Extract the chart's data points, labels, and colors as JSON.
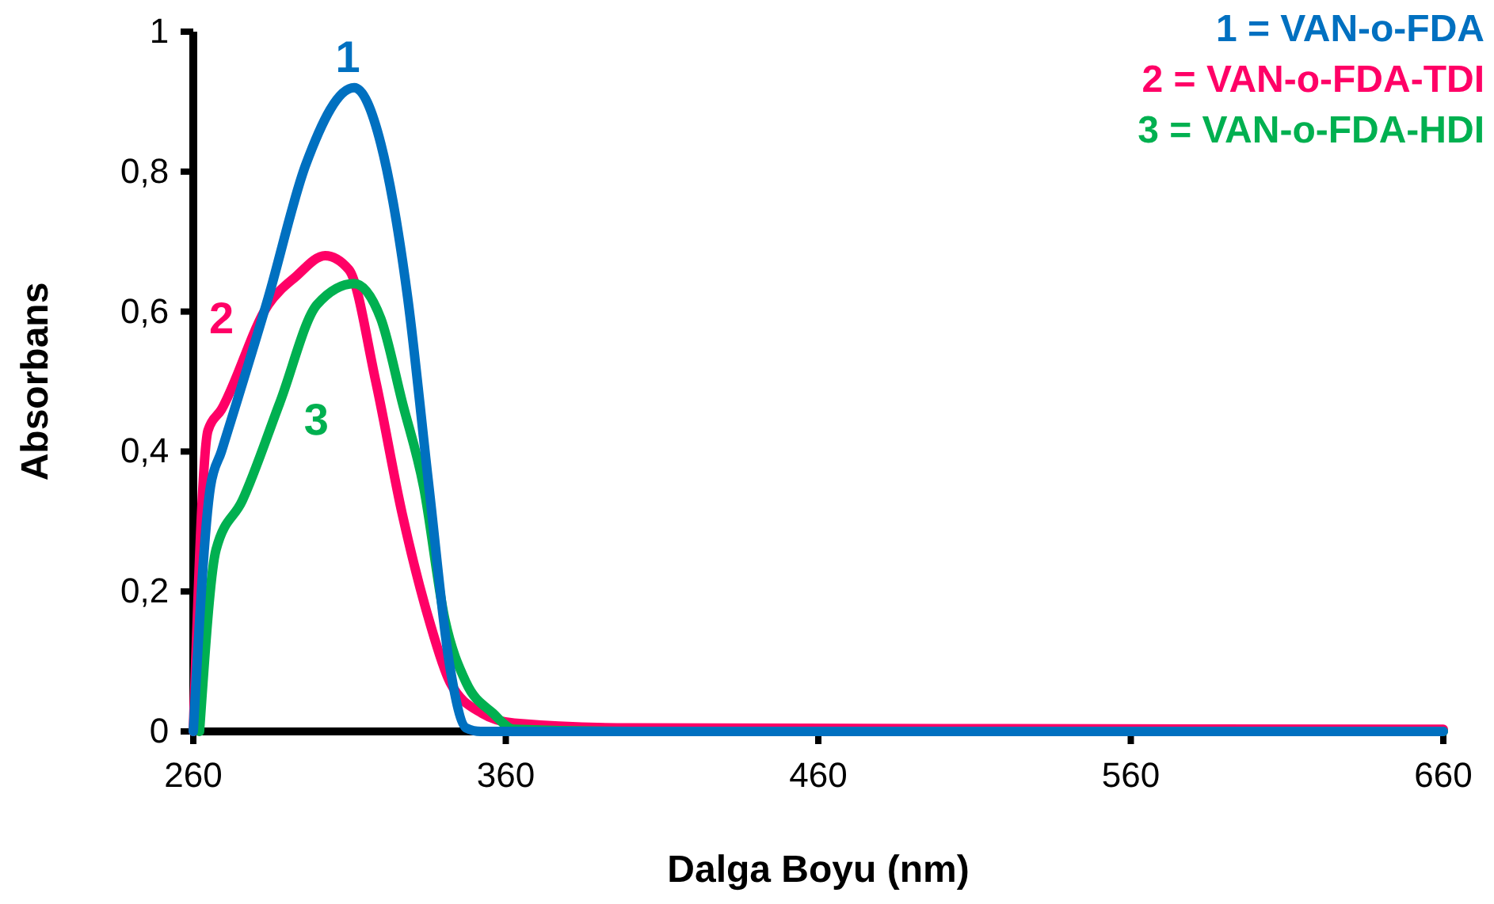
{
  "chart_data": {
    "type": "line",
    "xlabel": "Dalga Boyu (nm)",
    "ylabel": "Absorbans",
    "xlim": [
      260,
      660
    ],
    "xticks": [
      260,
      360,
      460,
      560,
      660
    ],
    "ylim": [
      0,
      1
    ],
    "yticks": [
      0,
      {
        "value": 0.2,
        "label": "0,2"
      },
      {
        "value": 0.4,
        "label": "0,4"
      },
      {
        "value": 0.6,
        "label": "0,6"
      },
      {
        "value": 0.8,
        "label": "0,8"
      },
      1
    ],
    "legend": "top right",
    "grid": false,
    "marker": "none",
    "line_style": "solid",
    "series": [
      {
        "name": "1 = VAN-o-FDA",
        "color": "#0070c0",
        "x": [
          260,
          265.5,
          269,
          284,
          296,
          311.5,
          320,
          328.6,
          335.4,
          342.2,
          347.3,
          352,
          400,
          500,
          660
        ],
        "values": [
          0,
          0.35,
          0.4,
          0.62,
          0.81,
          0.92,
          0.84,
          0.62,
          0.35,
          0.09,
          0.005,
          0,
          0,
          0,
          0
        ]
      },
      {
        "name": "2 = VAN-o-FDA-TDI",
        "color": "#ff0066",
        "x": [
          260,
          264.7,
          269,
          284,
          292.8,
          302.2,
          309.8,
          318.4,
          326.9,
          335.4,
          342.2,
          352.4,
          362.7,
          400,
          500,
          660
        ],
        "values": [
          0,
          0.43,
          0.46,
          0.61,
          0.65,
          0.68,
          0.66,
          0.5,
          0.31,
          0.16,
          0.07,
          0.026,
          0.012,
          0.005,
          0.004,
          0.003
        ]
      },
      {
        "name": "3 = VAN-o-FDA-HDI",
        "color": "#00b050",
        "x": [
          262,
          267.3,
          275.7,
          287.7,
          299.6,
          311.5,
          320,
          326.9,
          333.7,
          340.5,
          347.3,
          355.9,
          362.7,
          400,
          500,
          660
        ],
        "values": [
          0,
          0.26,
          0.33,
          0.47,
          0.61,
          0.64,
          0.59,
          0.47,
          0.35,
          0.16,
          0.07,
          0.026,
          0.003,
          0,
          0,
          0
        ]
      }
    ],
    "annotations": [
      "1",
      "2",
      "3"
    ]
  }
}
